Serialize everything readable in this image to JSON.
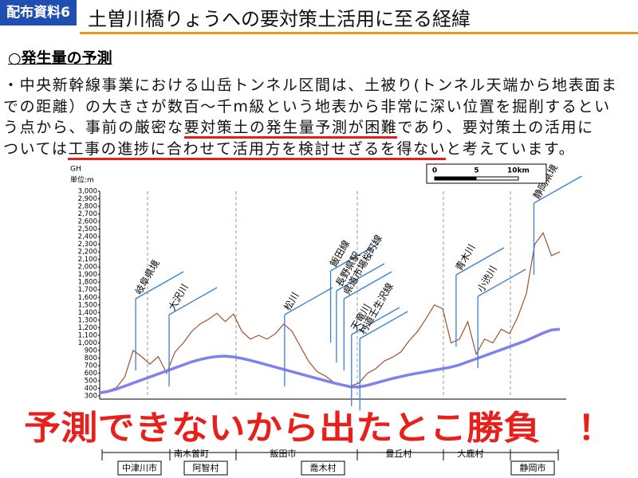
{
  "header": {
    "badge": "配布資料6",
    "title": "土曽川橋りょうへの要対策土活用に至る経緯"
  },
  "section": "○発生量の予測",
  "paragraph": [
    [
      {
        "text": "・中央新幹線事業における山岳トンネル区間は、土被り(トンネル天端から地表面ま"
      }
    ],
    [
      {
        "text": "での距離）の大きさが数百～千m級という地表から非常に深い位置を掘削するとい"
      }
    ],
    [
      {
        "text": "う点から、事前の厳密な"
      },
      {
        "text": "要対策土の発生量予測が困難",
        "underline": true
      },
      {
        "text": "であり、要対策土の活用に"
      }
    ],
    [
      {
        "text": "ついては"
      },
      {
        "text": "工事の進捗に合わせて活用方を検討せざるを得ない",
        "underline": true
      },
      {
        "text": "と考えています。"
      }
    ]
  ],
  "chart_data": {
    "type": "line",
    "axis_label": "GH",
    "unit_label": "単位:m",
    "x": [
      0,
      1,
      2,
      3,
      4,
      5,
      6,
      7,
      8,
      9,
      10,
      11,
      12,
      13,
      14,
      15,
      16,
      17,
      18,
      19,
      20,
      21,
      22,
      23,
      24,
      25,
      26,
      27,
      28,
      29,
      30,
      31,
      32,
      33,
      34,
      35,
      36,
      37,
      38,
      39,
      40,
      41,
      42,
      43,
      44,
      45,
      46,
      47,
      48,
      49,
      50,
      51,
      52,
      53,
      54,
      55
    ],
    "xlim": [
      0,
      55
    ],
    "series": [
      {
        "color": "#a0522d",
        "values": [
          350,
          370,
          410,
          550,
          900,
          820,
          720,
          820,
          600,
          880,
          1000,
          1150,
          1250,
          1310,
          1390,
          1280,
          1380,
          1150,
          1050,
          1100,
          1050,
          1120,
          1250,
          1150,
          950,
          750,
          620,
          560,
          480,
          440,
          430,
          470,
          600,
          660,
          760,
          810,
          880,
          1030,
          1150,
          1320,
          1500,
          1450,
          1000,
          1050,
          1280,
          850,
          1050,
          1000,
          1180,
          1120,
          1350,
          1650,
          2300,
          2450,
          2150,
          2200
        ]
      },
      {
        "color": "#8080ee",
        "values": [
          340,
          360,
          390,
          430,
          470,
          510,
          550,
          590,
          630,
          670,
          710,
          750,
          780,
          805,
          820,
          825,
          815,
          795,
          770,
          740,
          710,
          680,
          650,
          620,
          590,
          560,
          530,
          500,
          470,
          445,
          420,
          420,
          440,
          470,
          500,
          530,
          555,
          580,
          600,
          620,
          640,
          660,
          680,
          710,
          750,
          790,
          830,
          870,
          910,
          950,
          990,
          1030,
          1080,
          1130,
          1170,
          1180
        ]
      }
    ],
    "ylim": [
      300,
      3000
    ],
    "yticks": [
      300,
      400,
      500,
      600,
      700,
      800,
      900,
      {
        "value": 1000,
        "label": "1,000"
      },
      {
        "value": 1100,
        "label": "1,100"
      },
      {
        "value": 1200,
        "label": "1,200"
      },
      {
        "value": 1300,
        "label": "1,300"
      },
      {
        "value": 1400,
        "label": "1,400"
      },
      {
        "value": 1500,
        "label": "1,500"
      },
      {
        "value": 1600,
        "label": "1,600"
      },
      {
        "value": 1700,
        "label": "1,700"
      },
      {
        "value": 1800,
        "label": "1,800"
      },
      {
        "value": 1900,
        "label": "1,900"
      },
      {
        "value": 2000,
        "label": "2,000"
      },
      {
        "value": 2100,
        "label": "2,100"
      },
      {
        "value": 2200,
        "label": "2,200"
      },
      {
        "value": 2300,
        "label": "2,300"
      },
      {
        "value": 2400,
        "label": "2,400"
      },
      {
        "value": 2500,
        "label": "2,500"
      },
      {
        "value": 2600,
        "label": "2,600"
      },
      {
        "value": 2700,
        "label": "2,700"
      },
      {
        "value": 2800,
        "label": "2,800"
      },
      {
        "value": 2900,
        "label": "2,900"
      },
      {
        "value": 3000,
        "label": "3,000"
      }
    ],
    "places": [
      {
        "label": "岐阜県境",
        "x": 4.3
      },
      {
        "label": "大沢川",
        "x": 8.3
      },
      {
        "label": "松川",
        "x": 22.1
      },
      {
        "label": "飯田線",
        "x": 27.6
      },
      {
        "label": "長野県駅",
        "x": 28.3
      },
      {
        "label": "県道市場桜町線",
        "x": 29.2
      },
      {
        "label": "天竜川",
        "x": 30.1
      },
      {
        "label": "村道壬生沢線",
        "x": 31.1
      },
      {
        "label": "青木川",
        "x": 42.6
      },
      {
        "label": "小渋川",
        "x": 45.2
      },
      {
        "label": "静岡県境",
        "x": 51.9
      }
    ],
    "scale_ticks": [
      0,
      5,
      {
        "value": 10,
        "label": "10km"
      }
    ],
    "municipalities_upper": [
      "南木曽町",
      "飯田市",
      "豊丘村",
      "大鹿村"
    ],
    "municipalities_lower": [
      "中津川市",
      "阿智村",
      "喬木村",
      "静岡市"
    ]
  },
  "slogan": "予測できないから出たとこ勝負　！"
}
